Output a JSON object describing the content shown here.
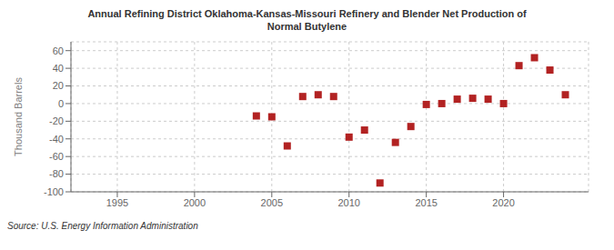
{
  "chart_data": {
    "type": "scatter",
    "title": "Annual Refining District Oklahoma-Kansas-Missouri Refinery and Blender Net Production of\nNormal Butylene",
    "ylabel": "Thousand Barrels",
    "annotations": [
      "Source: U.S. Energy Information Administration"
    ],
    "x": [
      2004,
      2005,
      2006,
      2007,
      2008,
      2009,
      2010,
      2011,
      2012,
      2013,
      2014,
      2015,
      2016,
      2017,
      2018,
      2019,
      2020,
      2021,
      2022,
      2023,
      2024
    ],
    "values": [
      -14,
      -15,
      -48,
      8,
      10,
      8,
      -38,
      -30,
      -90,
      -44,
      -26,
      -1,
      0,
      5,
      6,
      5,
      0,
      43,
      52,
      38,
      10
    ],
    "color": "#b22222",
    "marker": "square",
    "xlim": [
      1992,
      2025.5
    ],
    "ylim": [
      -100,
      70
    ],
    "xticks": [
      1995,
      2000,
      2005,
      2010,
      2015,
      2020
    ],
    "yticks": [
      -100,
      -80,
      -60,
      -40,
      -20,
      0,
      20,
      40,
      60
    ],
    "grid": true
  }
}
